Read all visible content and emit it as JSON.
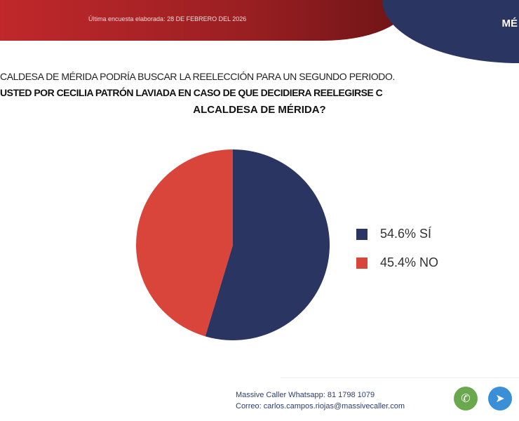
{
  "header": {
    "survey_date": "Última encuesta elaborada: 28 DE FEBRERO DEL 2026",
    "region": "MÉ"
  },
  "question": {
    "line1": "CALDESA DE MÉRIDA PODRÍA BUSCAR LA REELECCIÓN PARA UN SEGUNDO PERIODO.",
    "line2": "USTED POR CECILIA PATRÓN LAVIADA EN CASO DE QUE DECIDIERA REELEGIRSE C",
    "line3": "ALCALDESA DE MÉRIDA?"
  },
  "chart_data": {
    "type": "pie",
    "categories": [
      "SÍ",
      "NO"
    ],
    "values": [
      54.6,
      45.4
    ],
    "colors": [
      "#2b3561",
      "#d9453a"
    ],
    "legend": [
      "54.6% SÍ",
      "45.4% NO"
    ],
    "legend_position": "right"
  },
  "footer": {
    "whatsapp": "Massive Caller Whatsapp: 81 1798 1079",
    "email": "Correo: carlos.campos.riojas@massivecaller.com",
    "icons": [
      "whatsapp-icon",
      "telegram-icon"
    ]
  }
}
